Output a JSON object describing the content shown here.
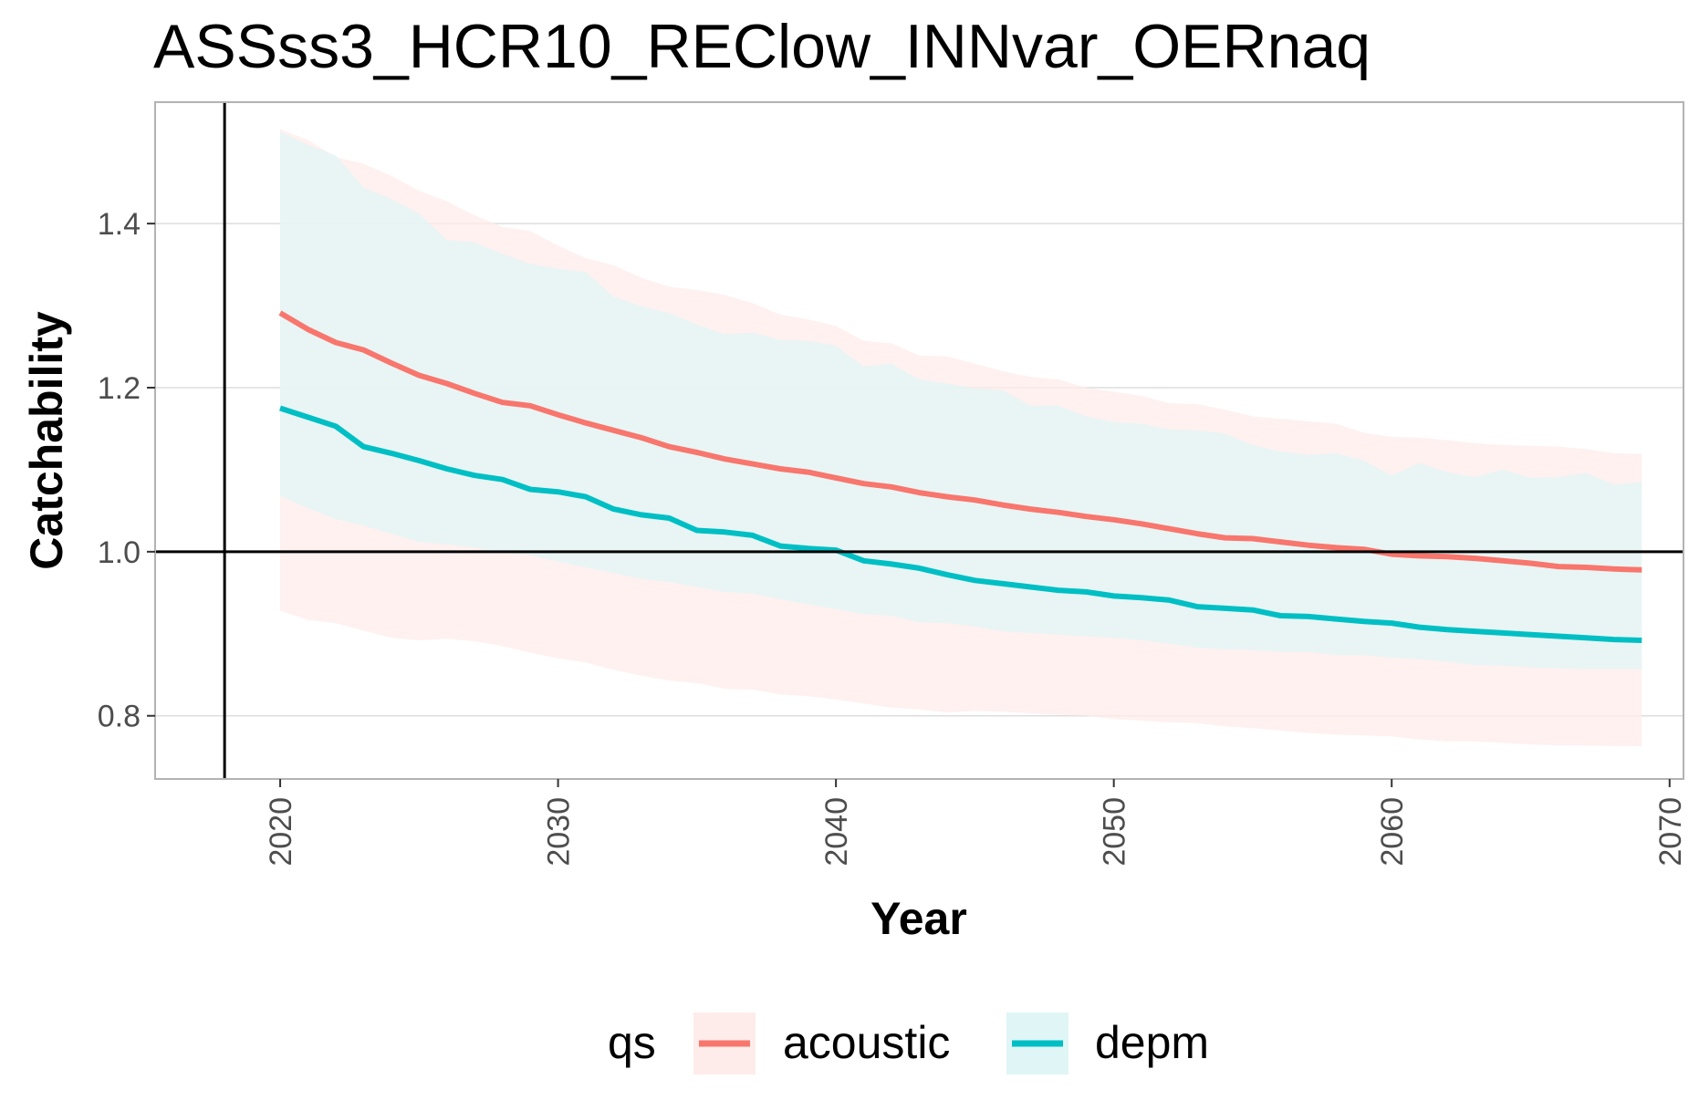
{
  "chart_data": {
    "type": "line",
    "title": "ASSss3_HCR10_REClow_INNvar_OERnaq",
    "xlabel": "Year",
    "ylabel": "Catchability",
    "xlim": [
      2015.5,
      2070.5
    ],
    "ylim": [
      0.723,
      1.548
    ],
    "x_ticks": [
      "2020",
      "2030",
      "2040",
      "2050",
      "2060",
      "2070"
    ],
    "y_ticks": [
      "0.8",
      "1.0",
      "1.2",
      "1.4"
    ],
    "x_tick_values": [
      2020,
      2030,
      2040,
      2050,
      2060,
      2070
    ],
    "y_tick_values": [
      0.8,
      1.0,
      1.2,
      1.4
    ],
    "reference_lines": {
      "vertical_x": 2018,
      "horizontal_y": 1.0
    },
    "grid": "horizontal major gridlines",
    "legend": {
      "title": "qs",
      "position": "bottom"
    },
    "x": [
      2020,
      2021,
      2022,
      2023,
      2024,
      2025,
      2026,
      2027,
      2028,
      2029,
      2030,
      2031,
      2032,
      2033,
      2034,
      2035,
      2036,
      2037,
      2038,
      2039,
      2040,
      2041,
      2042,
      2043,
      2044,
      2045,
      2046,
      2047,
      2048,
      2049,
      2050,
      2051,
      2052,
      2053,
      2054,
      2055,
      2056,
      2057,
      2058,
      2059,
      2060,
      2061,
      2062,
      2063,
      2064,
      2065,
      2066,
      2067,
      2068,
      2069
    ],
    "series": [
      {
        "name": "acoustic",
        "color": "#F8766D",
        "ribbon_fill": "#FDECEA",
        "values": [
          1.291,
          1.271,
          1.255,
          1.246,
          1.23,
          1.215,
          1.205,
          1.193,
          1.182,
          1.178,
          1.167,
          1.157,
          1.148,
          1.139,
          1.128,
          1.121,
          1.113,
          1.107,
          1.101,
          1.097,
          1.09,
          1.083,
          1.079,
          1.072,
          1.067,
          1.063,
          1.057,
          1.052,
          1.048,
          1.043,
          1.039,
          1.034,
          1.028,
          1.022,
          1.017,
          1.016,
          1.012,
          1.008,
          1.005,
          1.003,
          0.997,
          0.995,
          0.994,
          0.992,
          0.989,
          0.986,
          0.982,
          0.981,
          0.979,
          0.978
        ],
        "upper": [
          1.515,
          1.502,
          1.481,
          1.473,
          1.458,
          1.44,
          1.427,
          1.41,
          1.396,
          1.391,
          1.373,
          1.358,
          1.349,
          1.334,
          1.323,
          1.319,
          1.313,
          1.303,
          1.289,
          1.283,
          1.275,
          1.257,
          1.254,
          1.239,
          1.238,
          1.229,
          1.22,
          1.213,
          1.21,
          1.2,
          1.195,
          1.19,
          1.181,
          1.18,
          1.173,
          1.165,
          1.162,
          1.159,
          1.156,
          1.145,
          1.14,
          1.139,
          1.136,
          1.132,
          1.13,
          1.129,
          1.128,
          1.125,
          1.12,
          1.119
        ],
        "lower": [
          0.928,
          0.917,
          0.913,
          0.904,
          0.895,
          0.892,
          0.894,
          0.891,
          0.885,
          0.877,
          0.87,
          0.865,
          0.856,
          0.849,
          0.843,
          0.84,
          0.833,
          0.832,
          0.826,
          0.824,
          0.82,
          0.815,
          0.81,
          0.808,
          0.804,
          0.806,
          0.805,
          0.803,
          0.801,
          0.8,
          0.796,
          0.794,
          0.792,
          0.791,
          0.787,
          0.785,
          0.782,
          0.779,
          0.777,
          0.776,
          0.775,
          0.771,
          0.769,
          0.769,
          0.767,
          0.765,
          0.764,
          0.764,
          0.763,
          0.763
        ]
      },
      {
        "name": "depm",
        "color": "#00BFC4",
        "ribbon_fill": "#E0F5F6",
        "values": [
          1.175,
          1.164,
          1.153,
          1.128,
          1.12,
          1.111,
          1.101,
          1.093,
          1.088,
          1.076,
          1.073,
          1.067,
          1.052,
          1.045,
          1.041,
          1.026,
          1.024,
          1.02,
          1.007,
          1.004,
          1.002,
          0.989,
          0.985,
          0.98,
          0.972,
          0.965,
          0.961,
          0.957,
          0.953,
          0.951,
          0.946,
          0.944,
          0.941,
          0.933,
          0.931,
          0.929,
          0.922,
          0.921,
          0.918,
          0.915,
          0.913,
          0.908,
          0.905,
          0.903,
          0.901,
          0.899,
          0.897,
          0.895,
          0.893,
          0.892
        ],
        "upper": [
          1.512,
          1.496,
          1.483,
          1.444,
          1.43,
          1.412,
          1.38,
          1.377,
          1.363,
          1.351,
          1.345,
          1.341,
          1.311,
          1.299,
          1.291,
          1.277,
          1.265,
          1.267,
          1.258,
          1.257,
          1.251,
          1.226,
          1.229,
          1.21,
          1.205,
          1.199,
          1.197,
          1.178,
          1.178,
          1.165,
          1.158,
          1.156,
          1.149,
          1.148,
          1.144,
          1.13,
          1.122,
          1.118,
          1.12,
          1.111,
          1.093,
          1.108,
          1.097,
          1.091,
          1.1,
          1.09,
          1.091,
          1.096,
          1.082,
          1.085
        ],
        "lower": [
          1.068,
          1.053,
          1.04,
          1.032,
          1.022,
          1.012,
          1.009,
          1.005,
          0.999,
          0.996,
          0.988,
          0.981,
          0.974,
          0.967,
          0.963,
          0.957,
          0.951,
          0.949,
          0.942,
          0.936,
          0.93,
          0.924,
          0.922,
          0.914,
          0.913,
          0.909,
          0.903,
          0.901,
          0.899,
          0.897,
          0.895,
          0.892,
          0.888,
          0.883,
          0.881,
          0.88,
          0.878,
          0.878,
          0.874,
          0.874,
          0.871,
          0.869,
          0.866,
          0.862,
          0.861,
          0.859,
          0.858,
          0.857,
          0.857,
          0.857
        ]
      }
    ]
  }
}
